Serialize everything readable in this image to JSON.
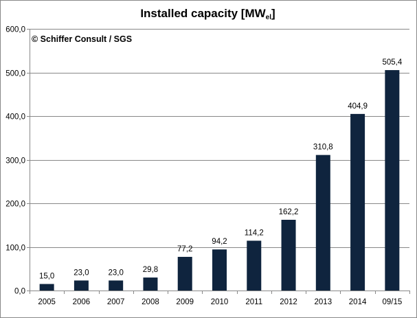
{
  "chart_data": {
    "type": "bar",
    "title_main": "Installed capacity [MW",
    "title_sub": "el",
    "title_end": "]",
    "annotation": "© Schiffer Consult / SGS",
    "categories": [
      "2005",
      "2006",
      "2007",
      "2008",
      "2009",
      "2010",
      "2011",
      "2012",
      "2013",
      "2014",
      "09/15"
    ],
    "values": [
      15.0,
      23.0,
      23.0,
      29.8,
      77.2,
      94.2,
      114.2,
      162.2,
      310.8,
      404.9,
      505.4
    ],
    "data_labels": [
      "15,0",
      "23,0",
      "23,0",
      "29,8",
      "77,2",
      "94,2",
      "114,2",
      "162,2",
      "310,8",
      "404,9",
      "505,4"
    ],
    "y_ticks": [
      0,
      100,
      200,
      300,
      400,
      500,
      600
    ],
    "y_tick_labels": [
      "0,0",
      "100,0",
      "200,0",
      "300,0",
      "400,0",
      "500,0",
      "600,0"
    ],
    "ylim": [
      0,
      600
    ],
    "grid": true,
    "bar_color": "#0f243e",
    "grid_color": "#878787",
    "xlabel": "",
    "ylabel": ""
  }
}
